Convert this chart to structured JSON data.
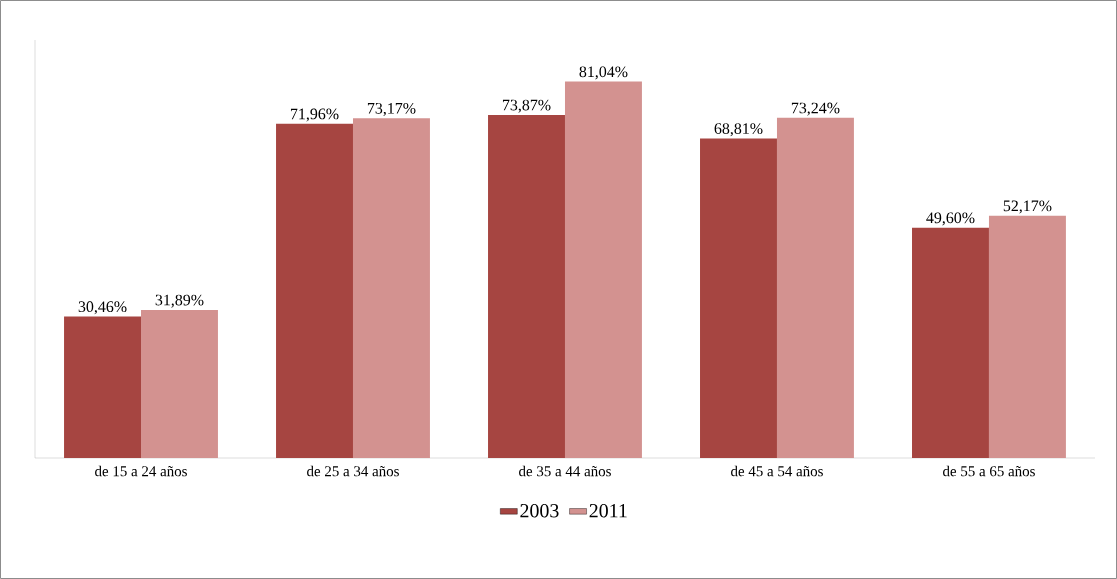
{
  "chart_data": {
    "type": "bar",
    "categories": [
      "de 15 a 24 años",
      "de 25 a 34 años",
      "de 35 a 44 años",
      "de 45 a 54 años",
      "de 55 a 65 años"
    ],
    "series": [
      {
        "name": "2003",
        "color": "#a64541",
        "values": [
          30.46,
          71.96,
          73.87,
          68.81,
          49.6
        ],
        "value_labels": [
          "30,46%",
          "71,96%",
          "73,87%",
          "68,81%",
          "49,60%"
        ]
      },
      {
        "name": "2011",
        "color": "#d39290",
        "values": [
          31.89,
          73.17,
          81.04,
          73.24,
          52.17
        ],
        "value_labels": [
          "31,89%",
          "73,17%",
          "81,04%",
          "73,24%",
          "52,17%"
        ]
      }
    ],
    "ylim": [
      0,
      90
    ],
    "legend": "bottom"
  }
}
